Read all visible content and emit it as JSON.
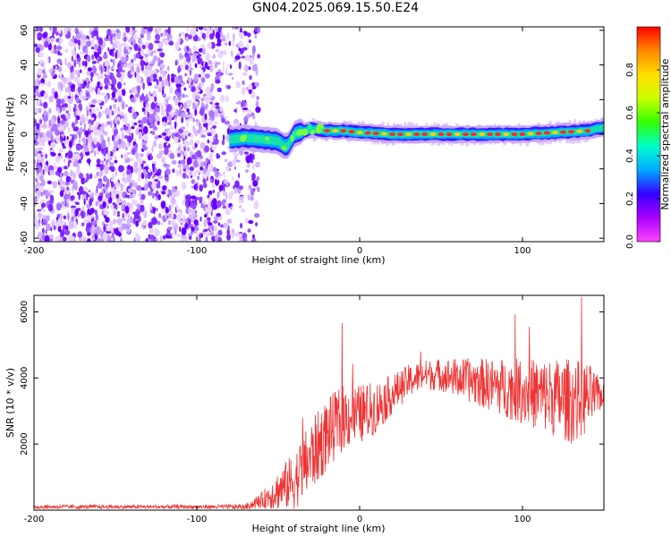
{
  "title": "GN04.2025.069.15.50.E24",
  "chart_data": [
    {
      "type": "heatmap",
      "title": "GN04.2025.069.15.50.E24",
      "xlabel": "Height of straight line (km)",
      "ylabel": "Frequency (Hz)",
      "xlim": [
        -200,
        150
      ],
      "ylim": [
        -62,
        62
      ],
      "xticks": [
        -200,
        -100,
        0,
        100
      ],
      "yticks": [
        -60,
        -40,
        -20,
        0,
        20,
        40,
        60
      ],
      "grid": false,
      "noise_region_x": [
        -200,
        -70
      ],
      "ridge": {
        "x": [
          -80,
          -70,
          -60,
          -50,
          -45,
          -40,
          -30,
          -20,
          -10,
          0,
          20,
          40,
          60,
          80,
          100,
          120,
          140,
          150
        ],
        "freq": [
          -3,
          -2,
          -3,
          -4,
          -8,
          0,
          3,
          2,
          2,
          1,
          0,
          0,
          0,
          0,
          0,
          1,
          2,
          4
        ]
      },
      "colorbar": {
        "label": "Normalized spectral amplitude",
        "range": [
          0,
          1
        ],
        "ticks": [
          0.0,
          0.2,
          0.4,
          0.6,
          0.8
        ],
        "colors": [
          "#ff44ff",
          "#aa00ff",
          "#3300ff",
          "#00aaff",
          "#00ffcc",
          "#33ff00",
          "#ccff00",
          "#ffdd00",
          "#ff8800",
          "#ff0000"
        ]
      }
    },
    {
      "type": "line",
      "xlabel": "Height of straight line (km)",
      "ylabel": "SNR (10 * v/v)",
      "xlim": [
        -200,
        150
      ],
      "ylim": [
        0,
        6500
      ],
      "xticks": [
        -200,
        -100,
        0,
        100
      ],
      "yticks": [
        2000,
        4000,
        6000
      ],
      "grid": false,
      "color": "#ee3333",
      "envelope": {
        "x": [
          -200,
          -150,
          -100,
          -70,
          -60,
          -50,
          -40,
          -30,
          -20,
          -10,
          0,
          10,
          20,
          30,
          40,
          50,
          60,
          70,
          80,
          90,
          100,
          110,
          120,
          130,
          140,
          150
        ],
        "mid": [
          100,
          100,
          100,
          100,
          300,
          600,
          900,
          1600,
          2300,
          2800,
          2900,
          3100,
          3500,
          3900,
          4100,
          4100,
          4000,
          3900,
          3800,
          3700,
          3600,
          3500,
          3400,
          3300,
          3400,
          3500
        ],
        "amp": [
          60,
          60,
          60,
          80,
          250,
          600,
          900,
          1100,
          1100,
          1000,
          900,
          800,
          600,
          500,
          450,
          500,
          600,
          700,
          800,
          900,
          1000,
          1100,
          1200,
          1300,
          1100,
          300
        ]
      }
    }
  ]
}
